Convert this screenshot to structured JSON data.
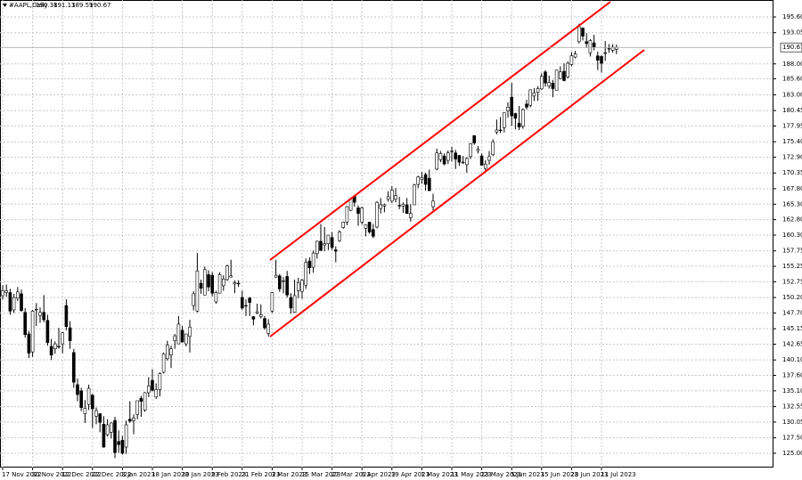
{
  "chart_data": {
    "type": "candlestick",
    "title": "#AAPL,Daily",
    "up_color": "#ffffff",
    "down_color": "#000000",
    "grid": true,
    "ylim": [
      122.69,
      198.34
    ],
    "yticks": [
      {
        "value": 195.6,
        "label": "195.60"
      },
      193.05,
      {
        "value": 188,
        "label": "188.00"
      },
      {
        "value": 185.6,
        "label": "185.60"
      },
      {
        "value": 183,
        "label": "183.00"
      },
      180.45,
      177.95,
      {
        "value": 175.4,
        "label": "175.40"
      },
      {
        "value": 172.9,
        "label": "172.90"
      },
      170.35,
      {
        "value": 167.8,
        "label": "167.80"
      },
      {
        "value": 165.3,
        "label": "165.30"
      },
      {
        "value": 162.8,
        "label": "162.80"
      },
      {
        "value": 160.3,
        "label": "160.30"
      },
      157.75,
      155.25,
      152.75,
      {
        "value": 150.2,
        "label": "150.20"
      },
      {
        "value": 147.7,
        "label": "147.70"
      },
      145.15,
      142.65,
      {
        "value": 140.1,
        "label": "140.10"
      },
      {
        "value": 137.6,
        "label": "137.60"
      },
      {
        "value": 135.1,
        "label": "135.10"
      },
      132.55,
      130.05,
      {
        "value": 127.5,
        "label": "127.50"
      },
      {
        "value": 125,
        "label": "125.00"
      }
    ],
    "categories": [
      "17 Nov 2022",
      null,
      null,
      null,
      null,
      null,
      null,
      null,
      "30 Nov 2022",
      null,
      null,
      null,
      null,
      null,
      null,
      null,
      "12 Dec 2022",
      null,
      null,
      null,
      null,
      null,
      null,
      null,
      "22 Dec 2022",
      null,
      null,
      null,
      null,
      null,
      null,
      null,
      "3 Jan 2023",
      null,
      null,
      null,
      null,
      null,
      null,
      null,
      "18 Jan 2023",
      null,
      null,
      null,
      null,
      null,
      null,
      null,
      "30 Jan 2023",
      null,
      null,
      null,
      null,
      null,
      null,
      null,
      "9 Feb 2023",
      null,
      null,
      null,
      null,
      null,
      null,
      null,
      "21 Feb 2023",
      null,
      null,
      null,
      null,
      null,
      null,
      null,
      "3 Mar 2023",
      null,
      null,
      null,
      null,
      null,
      null,
      null,
      "15 Mar 2023",
      null,
      null,
      null,
      null,
      null,
      null,
      null,
      "27 Mar 2023",
      null,
      null,
      null,
      null,
      null,
      null,
      null,
      "6 Apr 2023",
      null,
      null,
      null,
      null,
      null,
      null,
      null,
      "19 Apr 2023",
      null,
      null,
      null,
      null,
      null,
      null,
      null,
      "1 May 2023",
      null,
      null,
      null,
      null,
      null,
      null,
      null,
      "11 May 2023",
      null,
      null,
      null,
      null,
      null,
      null,
      null,
      "23 May 2023",
      null,
      null,
      null,
      null,
      null,
      null,
      null,
      "5 Jun 2023",
      null,
      null,
      null,
      null,
      null,
      null,
      null,
      "15 Jun 2023",
      null,
      null,
      null,
      null,
      null,
      null,
      null,
      "28 Jun 2023",
      null,
      null,
      null,
      null,
      null,
      null,
      null,
      "11 Jul 2023",
      null,
      null,
      null,
      null
    ],
    "ohlc": [
      [
        150.5,
        152.2,
        149.9,
        151.3
      ],
      [
        151.0,
        152.3,
        150.3,
        151.3
      ],
      [
        151.0,
        151.6,
        147.4,
        148.0
      ],
      [
        148.2,
        150.8,
        147.7,
        150.2
      ],
      [
        150.1,
        151.9,
        149.6,
        151.1
      ],
      [
        150.8,
        151.5,
        147.9,
        148.1
      ],
      [
        147.8,
        148.5,
        143.7,
        144.2
      ],
      [
        144.3,
        144.8,
        140.4,
        141.2
      ],
      [
        141.4,
        148.2,
        140.6,
        148.0
      ],
      [
        148.2,
        149.3,
        145.6,
        148.3
      ],
      [
        147.3,
        148.6,
        146.1,
        147.8
      ],
      [
        147.8,
        150.6,
        146.2,
        146.6
      ],
      [
        146.5,
        147.4,
        142.4,
        142.9
      ],
      [
        142.3,
        143.5,
        140.1,
        140.9
      ],
      [
        141.9,
        143.1,
        141.1,
        142.7
      ],
      [
        142.3,
        145.3,
        141.9,
        142.2
      ],
      [
        142.7,
        144.6,
        141.2,
        144.5
      ],
      [
        148.9,
        149.9,
        144.9,
        145.5
      ],
      [
        145.3,
        146.4,
        141.9,
        143.2
      ],
      [
        141.3,
        141.9,
        135.6,
        136.5
      ],
      [
        136.1,
        137.1,
        133.4,
        134.5
      ],
      [
        135.1,
        135.6,
        131.8,
        132.4
      ],
      [
        131.4,
        133.6,
        129.9,
        132.3
      ],
      [
        132.9,
        136.1,
        132.0,
        135.5
      ],
      [
        134.4,
        134.6,
        129.1,
        132.2
      ],
      [
        131.0,
        132.4,
        129.7,
        131.9
      ],
      [
        131.4,
        131.4,
        128.4,
        130.0
      ],
      [
        129.7,
        131.0,
        125.9,
        126.0
      ],
      [
        128.0,
        130.5,
        127.7,
        129.6
      ],
      [
        128.4,
        130.0,
        127.4,
        129.9
      ],
      [
        130.3,
        130.9,
        124.2,
        125.1
      ],
      [
        126.9,
        128.7,
        125.1,
        126.4
      ],
      [
        127.1,
        127.8,
        124.8,
        125.0
      ],
      [
        126.0,
        130.3,
        124.9,
        129.6
      ],
      [
        130.5,
        133.4,
        129.9,
        130.2
      ],
      [
        130.3,
        131.3,
        128.1,
        130.7
      ],
      [
        131.3,
        133.5,
        130.5,
        133.5
      ],
      [
        133.9,
        134.3,
        130.9,
        133.4
      ],
      [
        132.0,
        134.9,
        131.7,
        134.8
      ],
      [
        134.8,
        137.3,
        134.1,
        135.9
      ],
      [
        136.8,
        138.6,
        135.0,
        135.2
      ],
      [
        134.1,
        136.3,
        133.8,
        135.3
      ],
      [
        135.3,
        138.1,
        134.2,
        137.9
      ],
      [
        138.1,
        141.3,
        137.9,
        141.1
      ],
      [
        140.3,
        143.2,
        140.0,
        142.5
      ],
      [
        140.9,
        142.4,
        138.8,
        141.9
      ],
      [
        143.2,
        144.3,
        141.9,
        144.0
      ],
      [
        142.7,
        147.2,
        142.7,
        145.9
      ],
      [
        144.9,
        145.6,
        142.9,
        143.0
      ],
      [
        142.7,
        144.3,
        142.3,
        144.3
      ],
      [
        143.9,
        146.6,
        141.3,
        145.4
      ],
      [
        148.9,
        151.2,
        148.1,
        150.8
      ],
      [
        148.0,
        157.4,
        147.8,
        154.5
      ],
      [
        152.5,
        153.1,
        150.8,
        151.7
      ],
      [
        150.6,
        155.2,
        150.6,
        154.7
      ],
      [
        153.9,
        154.6,
        151.2,
        151.9
      ],
      [
        153.8,
        154.3,
        150.4,
        150.9
      ],
      [
        149.5,
        151.3,
        149.2,
        151.0
      ],
      [
        150.9,
        154.3,
        150.9,
        153.9
      ],
      [
        152.1,
        153.8,
        151.3,
        153.2
      ],
      [
        153.1,
        155.5,
        152.9,
        155.3
      ],
      [
        153.5,
        156.3,
        153.5,
        153.7
      ],
      [
        152.4,
        153.0,
        150.9,
        152.6
      ],
      [
        152.5,
        153.0,
        151.9,
        152.4
      ],
      [
        150.2,
        151.3,
        148.2,
        148.5
      ],
      [
        148.9,
        149.9,
        147.2,
        148.9
      ],
      [
        150.1,
        150.3,
        147.2,
        149.4
      ],
      [
        147.1,
        147.2,
        145.7,
        146.7
      ],
      [
        147.7,
        149.2,
        147.5,
        147.9
      ],
      [
        147.1,
        149.1,
        146.8,
        147.4
      ],
      [
        146.8,
        147.2,
        145.0,
        145.3
      ],
      [
        144.4,
        146.7,
        143.9,
        145.9
      ],
      [
        148.0,
        151.1,
        147.7,
        151.0
      ],
      [
        153.5,
        156.3,
        153.4,
        153.8
      ],
      [
        153.7,
        154.0,
        151.1,
        151.6
      ],
      [
        152.8,
        153.5,
        150.9,
        152.9
      ],
      [
        153.6,
        154.5,
        150.2,
        150.6
      ],
      [
        150.2,
        150.9,
        147.6,
        148.5
      ],
      [
        147.8,
        153.1,
        147.7,
        150.5
      ],
      [
        151.3,
        153.4,
        150.1,
        152.6
      ],
      [
        151.2,
        153.2,
        150.0,
        153.0
      ],
      [
        152.2,
        156.5,
        151.6,
        155.9
      ],
      [
        156.1,
        156.7,
        154.0,
        155.0
      ],
      [
        155.1,
        157.8,
        154.2,
        157.4
      ],
      [
        157.3,
        159.4,
        156.5,
        159.3
      ],
      [
        159.3,
        162.1,
        157.8,
        157.8
      ],
      [
        158.7,
        161.6,
        157.7,
        158.9
      ],
      [
        158.9,
        160.3,
        157.9,
        160.3
      ],
      [
        159.9,
        160.8,
        157.9,
        158.3
      ],
      [
        157.9,
        158.5,
        155.9,
        157.7
      ],
      [
        159.4,
        161.1,
        159.2,
        160.8
      ],
      [
        161.5,
        162.5,
        161.3,
        162.4
      ],
      [
        162.4,
        165.0,
        161.9,
        164.9
      ],
      [
        164.3,
        166.3,
        164.2,
        166.2
      ],
      [
        166.6,
        166.8,
        164.9,
        165.6
      ],
      [
        164.7,
        165.1,
        161.8,
        163.8
      ],
      [
        162.4,
        164.9,
        162.0,
        164.7
      ],
      [
        161.4,
        162.0,
        160.1,
        162.0
      ],
      [
        162.4,
        162.4,
        160.5,
        160.8
      ],
      [
        161.2,
        162.1,
        159.8,
        160.1
      ],
      [
        161.6,
        165.8,
        161.4,
        165.6
      ],
      [
        164.6,
        166.3,
        163.8,
        165.2
      ],
      [
        165.0,
        165.4,
        164.0,
        165.2
      ],
      [
        166.1,
        167.4,
        165.7,
        166.5
      ],
      [
        165.8,
        168.2,
        165.5,
        167.6
      ],
      [
        166.1,
        167.9,
        165.6,
        166.7
      ],
      [
        165.1,
        166.5,
        164.5,
        165.0
      ],
      [
        165.0,
        165.6,
        163.9,
        165.3
      ],
      [
        165.2,
        166.3,
        163.8,
        163.8
      ],
      [
        163.1,
        165.3,
        162.5,
        163.8
      ],
      [
        165.2,
        168.6,
        165.2,
        168.4
      ],
      [
        168.5,
        169.9,
        167.9,
        169.7
      ],
      [
        169.3,
        170.5,
        168.6,
        169.6
      ],
      [
        170.1,
        170.4,
        167.5,
        168.5
      ],
      [
        169.5,
        170.9,
        167.4,
        167.5
      ],
      [
        164.9,
        167.0,
        164.3,
        165.8
      ],
      [
        170.98,
        174.3,
        170.8,
        173.6
      ],
      [
        172.5,
        173.9,
        172.1,
        173.5
      ],
      [
        173.1,
        173.5,
        171.6,
        171.8
      ],
      [
        172.4,
        174.0,
        171.8,
        173.6
      ],
      [
        173.9,
        174.6,
        172.2,
        173.8
      ],
      [
        173.6,
        174.1,
        171.0,
        172.6
      ],
      [
        173.2,
        173.2,
        171.5,
        172.1
      ],
      [
        171.99,
        173.1,
        171.8,
        172.1
      ],
      [
        171.7,
        172.9,
        170.4,
        172.7
      ],
      [
        173.0,
        175.2,
        172.6,
        175.1
      ],
      [
        176.4,
        176.4,
        174.9,
        175.2
      ],
      [
        173.98,
        174.7,
        173.5,
        174.2
      ],
      [
        173.1,
        173.5,
        171.6,
        171.6
      ],
      [
        171.1,
        172.4,
        170.5,
        171.8
      ],
      [
        172.4,
        173.9,
        171.7,
        173.0
      ],
      [
        173.3,
        175.8,
        173.1,
        175.4
      ],
      [
        176.96,
        178.99,
        176.6,
        177.3
      ],
      [
        177.3,
        179.4,
        176.8,
        177.25
      ],
      [
        177.7,
        180.1,
        176.9,
        180.1
      ],
      [
        180.4,
        181.8,
        179.3,
        181.0
      ],
      [
        182.6,
        184.95,
        178.0,
        179.6
      ],
      [
        179.97,
        180.1,
        177.4,
        179.2
      ],
      [
        178.4,
        181.2,
        177.3,
        177.8
      ],
      [
        177.9,
        180.8,
        177.5,
        180.6
      ],
      [
        181.5,
        182.2,
        180.6,
        181.0
      ],
      [
        181.3,
        183.9,
        180.97,
        183.8
      ],
      [
        182.8,
        184.1,
        182.0,
        183.3
      ],
      [
        183.4,
        184.4,
        182.0,
        184.0
      ],
      [
        183.96,
        186.5,
        183.8,
        186.0
      ],
      [
        186.7,
        186.99,
        184.3,
        184.9
      ],
      [
        184.4,
        186.1,
        184.0,
        185.0
      ],
      [
        184.9,
        185.4,
        182.6,
        184.0
      ],
      [
        183.7,
        187.05,
        183.7,
        187.0
      ],
      [
        185.6,
        187.6,
        185.5,
        186.7
      ],
      [
        186.8,
        188.1,
        185.2,
        185.3
      ],
      [
        185.9,
        188.4,
        185.7,
        188.1
      ],
      [
        187.9,
        189.9,
        187.6,
        189.3
      ],
      [
        189.1,
        190.1,
        188.9,
        189.6
      ],
      [
        191.6,
        194.5,
        191.3,
        194.0
      ],
      [
        193.8,
        193.9,
        191.8,
        192.5
      ],
      [
        191.6,
        192.98,
        190.6,
        191.3
      ],
      [
        189.8,
        192.0,
        189.2,
        191.8
      ],
      [
        191.4,
        192.7,
        190.2,
        190.7
      ],
      [
        189.3,
        189.99,
        187.0,
        188.6
      ],
      [
        189.2,
        189.4,
        186.6,
        188.1
      ],
      [
        189.7,
        191.7,
        188.5,
        189.8
      ],
      [
        190.4,
        191.2,
        189.8,
        190.5
      ],
      [
        190.2,
        191.2,
        189.8,
        190.7
      ],
      [
        190.38,
        191.13,
        189.59,
        190.67
      ]
    ]
  }
}
